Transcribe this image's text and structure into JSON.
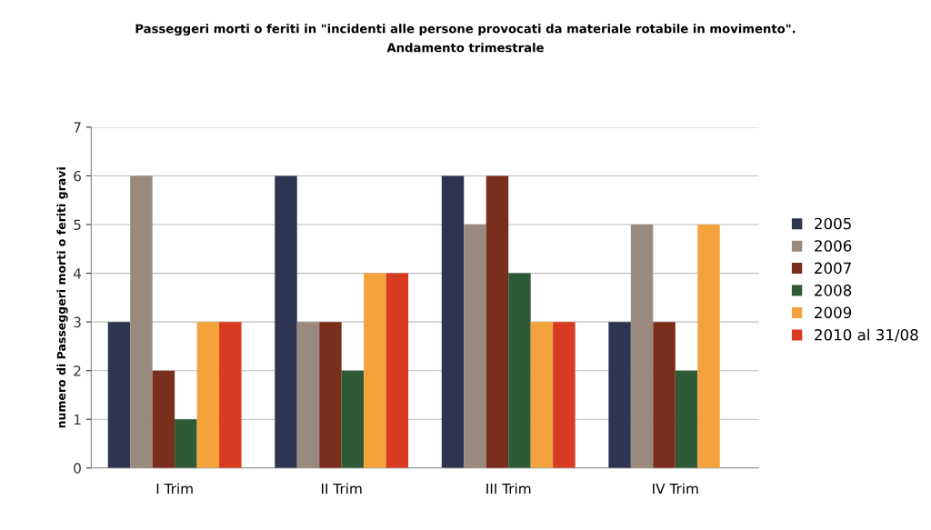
{
  "chart_data": {
    "type": "bar",
    "title": "Passeggeri morti o feriti in \"incidenti alle persone provocati da materiale rotabile in movimento\".\nAndamento trimestrale",
    "ylabel": "numero di Passeggeri morti o feriti gravi",
    "categories": [
      "I Trim",
      "II Trim",
      "III Trim",
      "IV Trim"
    ],
    "series": [
      {
        "name": "2005",
        "color": "#2e3550",
        "values": [
          3,
          6,
          6,
          3
        ]
      },
      {
        "name": "2006",
        "color": "#9a8a7e",
        "values": [
          6,
          3,
          5,
          5
        ]
      },
      {
        "name": "2007",
        "color": "#7a2e1c",
        "values": [
          2,
          3,
          6,
          3
        ]
      },
      {
        "name": "2008",
        "color": "#2f5a36",
        "values": [
          1,
          2,
          4,
          2
        ]
      },
      {
        "name": "2009",
        "color": "#f4a23c",
        "values": [
          3,
          4,
          3,
          5
        ]
      },
      {
        "name": "2010 al 31/08",
        "color": "#d83a22",
        "values": [
          3,
          4,
          3,
          null
        ]
      }
    ],
    "ylim": [
      0,
      7
    ],
    "yticks": [
      0,
      1,
      2,
      3,
      4,
      5,
      6,
      7
    ],
    "grid": "y",
    "legend": "right"
  }
}
